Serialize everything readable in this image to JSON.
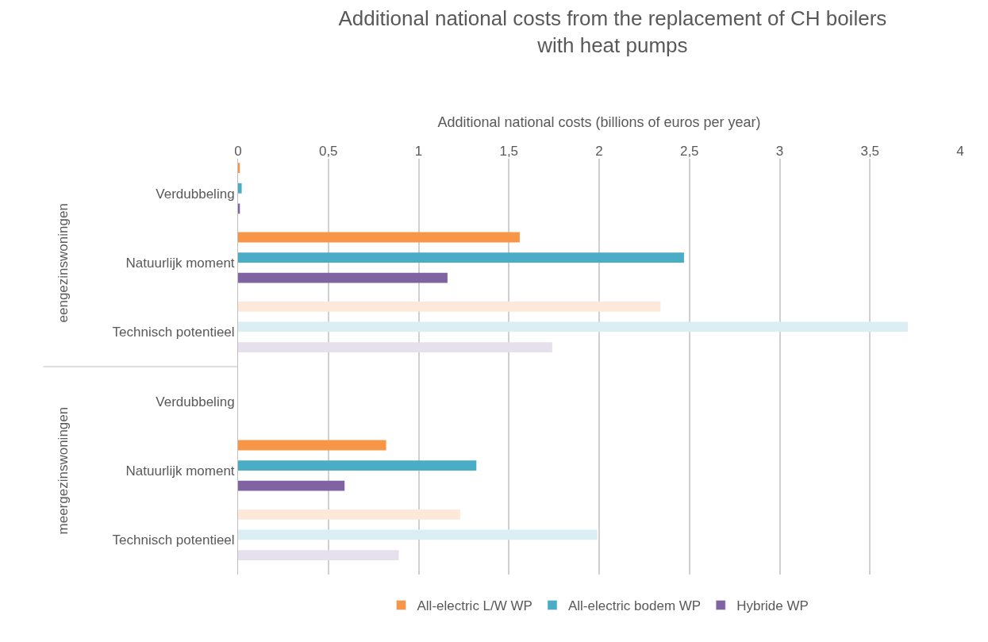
{
  "chart_data": {
    "type": "bar",
    "orientation": "horizontal",
    "title": "Additional national costs from the replacement of CH boilers with heat pumps",
    "xlabel": "Additional national costs (billions of euros per year)",
    "categories": [
      "Verdubbeling",
      "Natuurlijk moment",
      "Technisch potentieel",
      "Verdubbeling",
      "Natuurlijk moment",
      "Technisch potentieel"
    ],
    "annotations": [
      "eengezinswoningen",
      "meergezinswoningen"
    ],
    "series": [
      {
        "name": "All-electric L/W WP",
        "color": "#f79646",
        "colors": [
          "#f79646",
          "#f79646",
          "#fde9d9",
          "#f79646",
          "#f79646",
          "#fde9d9"
        ],
        "values": [
          0.01,
          1.56,
          2.34,
          null,
          0.82,
          1.23
        ]
      },
      {
        "name": "All-electric bodem WP",
        "color": "#4bacc6",
        "colors": [
          "#4bacc6",
          "#4bacc6",
          "#dbeef3",
          "#4bacc6",
          "#4bacc6",
          "#dbeef3"
        ],
        "values": [
          0.02,
          2.47,
          3.71,
          null,
          1.32,
          1.99
        ]
      },
      {
        "name": "Hybride WP",
        "color": "#8064a2",
        "colors": [
          "#8064a2",
          "#8064a2",
          "#e5e0ec",
          "#8064a2",
          "#8064a2",
          "#e5e0ec"
        ],
        "values": [
          0.01,
          1.16,
          1.74,
          null,
          0.59,
          0.89
        ]
      }
    ],
    "xlim": [
      0,
      4
    ],
    "xticks": [
      0,
      {
        "value": 0.5,
        "label": "0,5"
      },
      1,
      {
        "value": 1.5,
        "label": "1,5"
      },
      2,
      {
        "value": 2.5,
        "label": "2,5"
      },
      3,
      {
        "value": 3.5,
        "label": "3,5"
      },
      4
    ],
    "grid": "x",
    "legend": "bottom"
  }
}
